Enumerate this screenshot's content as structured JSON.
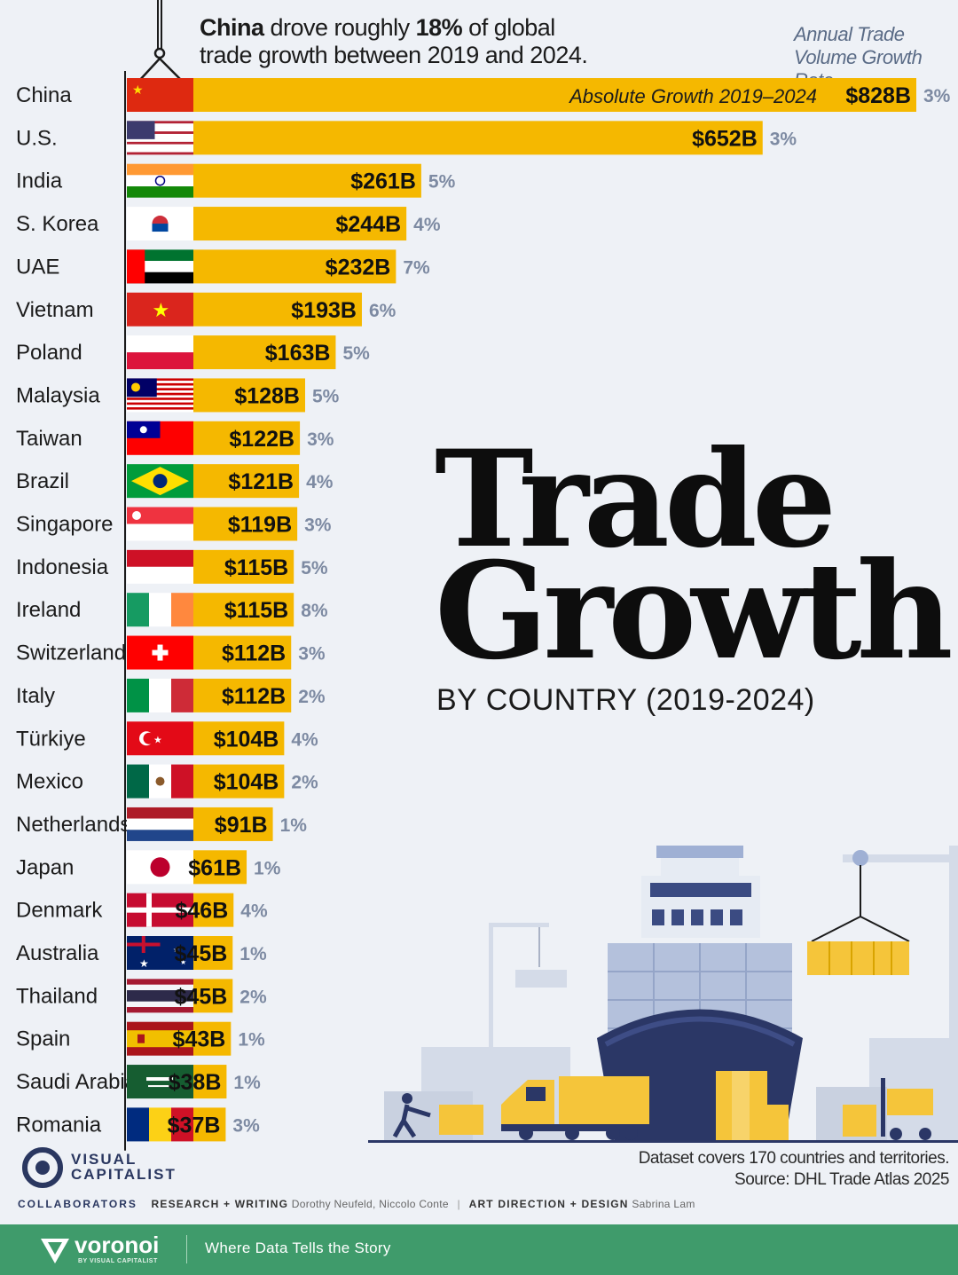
{
  "header": {
    "headline_bold_1": "China",
    "headline_text_1": " drove roughly ",
    "headline_bold_2": "18%",
    "headline_text_2": " of global",
    "headline_line_2": "trade growth between 2019 and 2024.",
    "rate_legend_line_1": "Annual Trade",
    "rate_legend_line_2": "Volume Growth Rate"
  },
  "title": {
    "line_1": "Trade",
    "line_2": "Growth",
    "subtitle": "BY COUNTRY (2019-2024)"
  },
  "colors": {
    "bar": "#f5b800",
    "background": "#eef1f6",
    "rate_text": "#7d8aa2",
    "footer_band": "#3f9b6b"
  },
  "chart_data": {
    "type": "bar",
    "orientation": "horizontal",
    "annotation": "Absolute Growth 2019–2024",
    "categories": [
      "China",
      "U.S.",
      "India",
      "S. Korea",
      "UAE",
      "Vietnam",
      "Poland",
      "Malaysia",
      "Taiwan",
      "Brazil",
      "Singapore",
      "Indonesia",
      "Ireland",
      "Switzerland",
      "Italy",
      "Türkiye",
      "Mexico",
      "Netherlands",
      "Japan",
      "Denmark",
      "Australia",
      "Thailand",
      "Spain",
      "Saudi Arabia",
      "Romania"
    ],
    "values": [
      828,
      652,
      261,
      244,
      232,
      193,
      163,
      128,
      122,
      121,
      119,
      115,
      115,
      112,
      112,
      104,
      104,
      91,
      61,
      46,
      45,
      45,
      43,
      38,
      37
    ],
    "value_labels": [
      "$828B",
      "$652B",
      "$261B",
      "$244B",
      "$232B",
      "$193B",
      "$163B",
      "$128B",
      "$122B",
      "$121B",
      "$119B",
      "$115B",
      "$115B",
      "$112B",
      "$112B",
      "$104B",
      "$104B",
      "$91B",
      "$61B",
      "$46B",
      "$45B",
      "$45B",
      "$43B",
      "$38B",
      "$37B"
    ],
    "growth_rates": [
      "3%",
      "3%",
      "5%",
      "4%",
      "7%",
      "6%",
      "5%",
      "5%",
      "3%",
      "4%",
      "3%",
      "5%",
      "8%",
      "3%",
      "2%",
      "4%",
      "2%",
      "1%",
      "1%",
      "4%",
      "1%",
      "2%",
      "1%",
      "1%",
      "3%"
    ],
    "flags": [
      "china-flag",
      "usa-flag",
      "india-flag",
      "south-korea-flag",
      "uae-flag",
      "vietnam-flag",
      "poland-flag",
      "malaysia-flag",
      "taiwan-flag",
      "brazil-flag",
      "singapore-flag",
      "indonesia-flag",
      "ireland-flag",
      "switzerland-flag",
      "italy-flag",
      "turkiye-flag",
      "mexico-flag",
      "netherlands-flag",
      "japan-flag",
      "denmark-flag",
      "australia-flag",
      "thailand-flag",
      "spain-flag",
      "saudi-arabia-flag",
      "romania-flag"
    ]
  },
  "footer": {
    "brand_line_1": "VISUAL",
    "brand_line_2": "CAPITALIST",
    "note_line_1": "Dataset covers 170 countries and territories.",
    "note_line_2": "Source: DHL Trade Atlas 2025",
    "collaborators_label": "COLLABORATORS",
    "research_label": "RESEARCH + WRITING",
    "research_names": "Dorothy Neufeld, Niccolo Conte",
    "design_label": "ART DIRECTION + DESIGN",
    "design_names": "Sabrina Lam",
    "voronoi_word": "voronoi",
    "voronoi_by": "BY VISUAL CAPITALIST",
    "tagline": "Where Data Tells the Story"
  }
}
